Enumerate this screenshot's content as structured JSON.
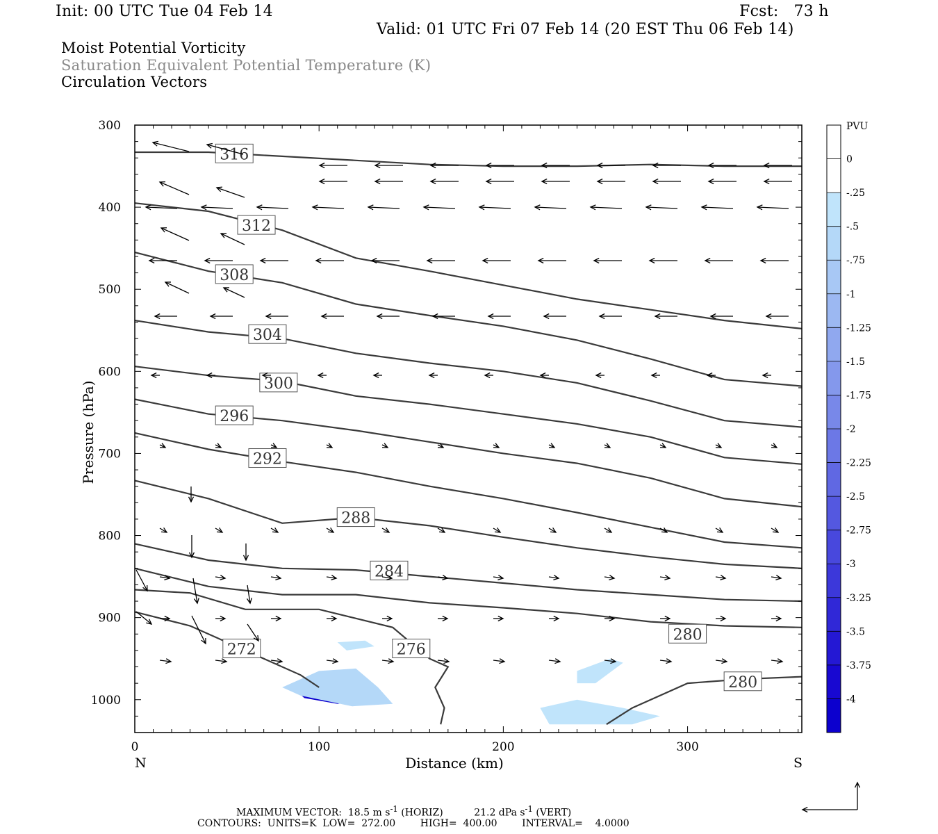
{
  "header": {
    "init": "Init: 00 UTC Tue 04 Feb 14",
    "fcst": "Fcst:   73 h",
    "valid": "Valid: 01 UTC Fri 07 Feb 14 (20 EST Thu 06 Feb 14)"
  },
  "titles": [
    "Moist Potential Vorticity",
    "Saturation Equivalent Potential Temperature (K)",
    "Circulation Vectors"
  ],
  "footer": {
    "max_vector_label": "MAXIMUM VECTOR:",
    "max_vector_horiz": "18.5 m s",
    "horiz_unit_exp": "-1",
    "horiz_tag": "(HORIZ)",
    "max_vector_vert": "21.2 dPa s",
    "vert_unit_exp": "-1",
    "vert_tag": "(VERT)",
    "contours": "CONTOURS:  UNITS=K  LOW=  272.00        HIGH=  400.00        INTERVAL=    4.0000"
  },
  "colors": {
    "contour": "#3a3a3a",
    "vector": "#000000",
    "frame": "#000000",
    "pv_shades": [
      "#ffffff",
      "#ffffff",
      "#c0e4fb",
      "#b4d8f8",
      "#a8c8f5",
      "#9cb8f2",
      "#90a8ef",
      "#8498ec",
      "#7888e9",
      "#6c78e6",
      "#6068e3",
      "#5458e0",
      "#4848dd",
      "#3c38da",
      "#3028d7",
      "#2418d4",
      "#1808d1",
      "#0c00ce"
    ]
  },
  "chart_data": {
    "type": "cross-section",
    "xlabel": "Distance (km)",
    "ylabel": "Pressure (hPa)",
    "xlim": [
      0,
      362
    ],
    "ylim": [
      1040,
      300
    ],
    "x_ticks": [
      0,
      100,
      200,
      300
    ],
    "y_ticks": [
      300,
      400,
      500,
      600,
      700,
      800,
      900,
      1000
    ],
    "x_end_labels": [
      "N",
      "S"
    ],
    "colorbar": {
      "unit": "PVU",
      "levels": [
        "0",
        "-.25",
        "-.5",
        "-.75",
        "-1",
        "-1.25",
        "-1.5",
        "-1.75",
        "-2",
        "-2.25",
        "-2.5",
        "-2.75",
        "-3",
        "-3.25",
        "-3.5",
        "-3.75",
        "-4"
      ]
    },
    "contours": [
      {
        "label": "316",
        "label_at": [
          54,
          335
        ],
        "points": [
          [
            0,
            333
          ],
          [
            40,
            333
          ],
          [
            80,
            338
          ],
          [
            120,
            343
          ],
          [
            160,
            348
          ],
          [
            200,
            350
          ],
          [
            240,
            350
          ],
          [
            280,
            348
          ],
          [
            320,
            350
          ],
          [
            362,
            350
          ]
        ]
      },
      {
        "label": "312",
        "label_at": [
          66,
          422
        ],
        "points": [
          [
            0,
            395
          ],
          [
            40,
            405
          ],
          [
            80,
            428
          ],
          [
            120,
            462
          ],
          [
            160,
            478
          ],
          [
            200,
            495
          ],
          [
            240,
            512
          ],
          [
            280,
            525
          ],
          [
            320,
            538
          ],
          [
            362,
            548
          ]
        ]
      },
      {
        "label": "308",
        "label_at": [
          54,
          482
        ],
        "points": [
          [
            0,
            455
          ],
          [
            40,
            478
          ],
          [
            80,
            492
          ],
          [
            120,
            518
          ],
          [
            160,
            532
          ],
          [
            200,
            545
          ],
          [
            240,
            562
          ],
          [
            280,
            585
          ],
          [
            320,
            610
          ],
          [
            362,
            618
          ]
        ]
      },
      {
        "label": "304",
        "label_at": [
          72,
          555
        ],
        "points": [
          [
            0,
            538
          ],
          [
            40,
            552
          ],
          [
            80,
            560
          ],
          [
            120,
            578
          ],
          [
            160,
            590
          ],
          [
            200,
            600
          ],
          [
            240,
            614
          ],
          [
            280,
            636
          ],
          [
            320,
            660
          ],
          [
            362,
            668
          ]
        ]
      },
      {
        "label": "300",
        "label_at": [
          78,
          614
        ],
        "points": [
          [
            0,
            594
          ],
          [
            40,
            605
          ],
          [
            80,
            612
          ],
          [
            120,
            630
          ],
          [
            160,
            640
          ],
          [
            200,
            652
          ],
          [
            240,
            664
          ],
          [
            280,
            680
          ],
          [
            320,
            705
          ],
          [
            362,
            713
          ]
        ]
      },
      {
        "label": "296",
        "label_at": [
          54,
          654
        ],
        "points": [
          [
            0,
            634
          ],
          [
            40,
            652
          ],
          [
            80,
            660
          ],
          [
            120,
            672
          ],
          [
            160,
            686
          ],
          [
            200,
            700
          ],
          [
            240,
            712
          ],
          [
            280,
            730
          ],
          [
            320,
            755
          ],
          [
            362,
            765
          ]
        ]
      },
      {
        "label": "292",
        "label_at": [
          72,
          706
        ],
        "points": [
          [
            0,
            675
          ],
          [
            40,
            695
          ],
          [
            80,
            710
          ],
          [
            120,
            723
          ],
          [
            160,
            740
          ],
          [
            200,
            755
          ],
          [
            240,
            772
          ],
          [
            280,
            790
          ],
          [
            320,
            808
          ],
          [
            362,
            815
          ]
        ]
      },
      {
        "label": "288",
        "label_at": [
          120,
          778
        ],
        "points": [
          [
            0,
            733
          ],
          [
            40,
            755
          ],
          [
            80,
            785
          ],
          [
            120,
            778
          ],
          [
            160,
            788
          ],
          [
            200,
            802
          ],
          [
            240,
            815
          ],
          [
            280,
            826
          ],
          [
            320,
            835
          ],
          [
            362,
            840
          ]
        ]
      },
      {
        "label": "284",
        "label_at": [
          138,
          843
        ],
        "points": [
          [
            0,
            810
          ],
          [
            40,
            830
          ],
          [
            80,
            840
          ],
          [
            120,
            842
          ],
          [
            160,
            850
          ],
          [
            200,
            858
          ],
          [
            240,
            866
          ],
          [
            280,
            872
          ],
          [
            320,
            878
          ],
          [
            362,
            880
          ]
        ]
      },
      {
        "label": "280",
        "label_at": [
          300,
          920
        ],
        "points": [
          [
            0,
            840
          ],
          [
            40,
            862
          ],
          [
            80,
            872
          ],
          [
            120,
            872
          ],
          [
            160,
            882
          ],
          [
            200,
            888
          ],
          [
            240,
            895
          ],
          [
            280,
            905
          ],
          [
            320,
            910
          ],
          [
            362,
            912
          ]
        ]
      },
      {
        "label": "276",
        "label_at": [
          150,
          938
        ],
        "points": [
          [
            0,
            866
          ],
          [
            30,
            870
          ],
          [
            60,
            890
          ],
          [
            100,
            890
          ],
          [
            140,
            912
          ],
          [
            160,
            950
          ],
          [
            170,
            960
          ],
          [
            163,
            985
          ],
          [
            168,
            1010
          ],
          [
            166,
            1030
          ]
        ]
      },
      {
        "label": "272",
        "label_at": [
          58,
          938
        ],
        "points": [
          [
            0,
            893
          ],
          [
            30,
            910
          ],
          [
            60,
            940
          ],
          [
            90,
            970
          ],
          [
            100,
            985
          ]
        ]
      },
      {
        "label": "280",
        "label_at": [
          330,
          978
        ],
        "points": [
          [
            256,
            1030
          ],
          [
            270,
            1010
          ],
          [
            300,
            980
          ],
          [
            330,
            975
          ],
          [
            362,
            972
          ]
        ]
      }
    ],
    "shaded_regions": [
      {
        "level": "-4",
        "points": [
          [
            87,
            988
          ],
          [
            100,
            978
          ],
          [
            120,
            980
          ],
          [
            130,
            1000
          ],
          [
            110,
            1005
          ],
          [
            92,
            998
          ]
        ]
      },
      {
        "level": "-.5",
        "points": [
          [
            80,
            985
          ],
          [
            100,
            965
          ],
          [
            120,
            962
          ],
          [
            132,
            985
          ],
          [
            140,
            1005
          ],
          [
            118,
            1008
          ],
          [
            90,
            995
          ]
        ]
      },
      {
        "level": "-.25",
        "points": [
          [
            110,
            930
          ],
          [
            125,
            928
          ],
          [
            130,
            935
          ],
          [
            115,
            940
          ]
        ]
      },
      {
        "level": "-.25",
        "points": [
          [
            240,
            965
          ],
          [
            258,
            950
          ],
          [
            265,
            955
          ],
          [
            250,
            980
          ],
          [
            240,
            980
          ]
        ]
      },
      {
        "level": "-.25",
        "points": [
          [
            220,
            1010
          ],
          [
            240,
            1000
          ],
          [
            265,
            1010
          ],
          [
            285,
            1020
          ],
          [
            270,
            1030
          ],
          [
            225,
            1030
          ]
        ]
      }
    ]
  }
}
